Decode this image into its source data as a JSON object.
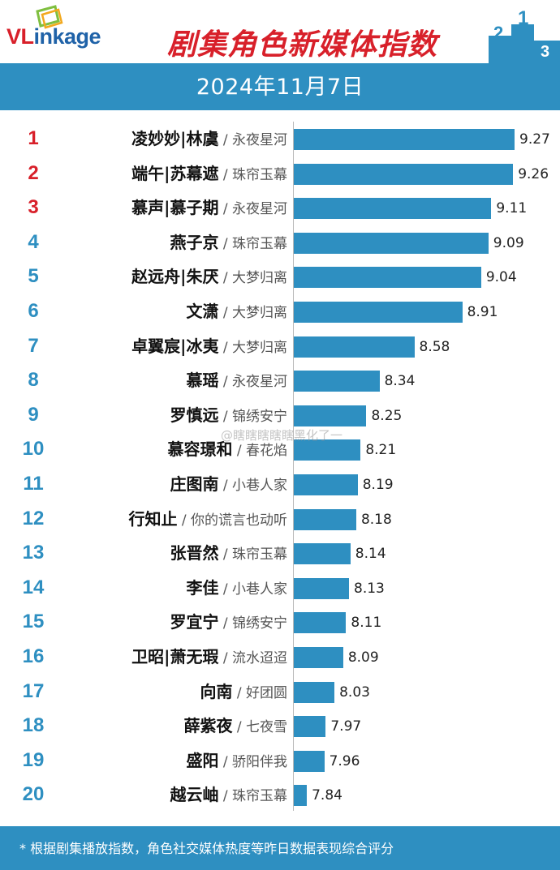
{
  "header": {
    "logo_text_vl": "VL",
    "logo_text_rest": "inkage",
    "title": "剧集角色新媒体指数",
    "podium_numbers": [
      "2",
      "1",
      "3"
    ]
  },
  "date": "2024年11月7日",
  "watermark": "@瞎瞎瞎瞎瞎黑化了一",
  "footer": {
    "note": "* 根据剧集播放指数，角色社交媒体热度等昨日数据表现综合评分"
  },
  "colors": {
    "bar": "#2e8fc1",
    "rank_top": "#d8202a",
    "rank_other": "#2e8fc1"
  },
  "chart_data": {
    "type": "bar",
    "orientation": "horizontal",
    "categories": [
      {
        "rank": "1",
        "role": "凌妙妙|林虞",
        "drama": "永夜星河"
      },
      {
        "rank": "2",
        "role": "端午|苏幕遮",
        "drama": "珠帘玉幕"
      },
      {
        "rank": "3",
        "role": "慕声|慕子期",
        "drama": "永夜星河"
      },
      {
        "rank": "4",
        "role": "燕子京",
        "drama": "珠帘玉幕"
      },
      {
        "rank": "5",
        "role": "赵远舟|朱厌",
        "drama": "大梦归离"
      },
      {
        "rank": "6",
        "role": "文潇",
        "drama": "大梦归离"
      },
      {
        "rank": "7",
        "role": "卓翼宸|冰夷",
        "drama": "大梦归离"
      },
      {
        "rank": "8",
        "role": "慕瑶",
        "drama": "永夜星河"
      },
      {
        "rank": "9",
        "role": "罗慎远",
        "drama": "锦绣安宁"
      },
      {
        "rank": "10",
        "role": "慕容璟和",
        "drama": "春花焰"
      },
      {
        "rank": "11",
        "role": "庄图南",
        "drama": "小巷人家"
      },
      {
        "rank": "12",
        "role": "行知止",
        "drama": "你的谎言也动听"
      },
      {
        "rank": "13",
        "role": "张晋然",
        "drama": "珠帘玉幕"
      },
      {
        "rank": "14",
        "role": "李佳",
        "drama": "小巷人家"
      },
      {
        "rank": "15",
        "role": "罗宜宁",
        "drama": "锦绣安宁"
      },
      {
        "rank": "16",
        "role": "卫昭|萧无瑕",
        "drama": "流水迢迢"
      },
      {
        "rank": "17",
        "role": "向南",
        "drama": "好团圆"
      },
      {
        "rank": "18",
        "role": "薛紫夜",
        "drama": "七夜雪"
      },
      {
        "rank": "19",
        "role": "盛阳",
        "drama": "骄阳伴我"
      },
      {
        "rank": "20",
        "role": "越云岫",
        "drama": "珠帘玉幕"
      }
    ],
    "values": [
      9.27,
      9.26,
      9.11,
      9.09,
      9.04,
      8.91,
      8.58,
      8.34,
      8.25,
      8.21,
      8.19,
      8.18,
      8.14,
      8.13,
      8.11,
      8.09,
      8.03,
      7.97,
      7.96,
      7.84
    ],
    "value_labels": [
      "9.27",
      "9.26",
      "9.11",
      "9.09",
      "9.04",
      "8.91",
      "8.58",
      "8.34",
      "8.25",
      "8.21",
      "8.19",
      "8.18",
      "8.14",
      "8.13",
      "8.11",
      "8.09",
      "8.03",
      "7.97",
      "7.96",
      "7.84"
    ],
    "title": "",
    "xlabel": "",
    "ylabel": "",
    "xlim": [
      7.75,
      9.27
    ],
    "grid": false,
    "legend": "none"
  }
}
